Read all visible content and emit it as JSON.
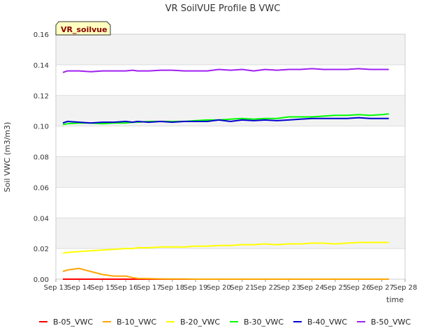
{
  "chart_data": {
    "type": "line",
    "title": "VR SoilVUE Profile B VWC",
    "xlabel": "time",
    "ylabel": "Soil VWC (m3/m3)",
    "badge": "VR_soilvue",
    "xlim": [
      13,
      28
    ],
    "ylim": [
      0.0,
      0.16
    ],
    "yticks": [
      0.0,
      0.02,
      0.04,
      0.06,
      0.08,
      0.1,
      0.12,
      0.14,
      0.16
    ],
    "ytick_labels": [
      "0.00",
      "0.02",
      "0.04",
      "0.06",
      "0.08",
      "0.10",
      "0.12",
      "0.14",
      "0.16"
    ],
    "xticks": [
      13,
      14,
      15,
      16,
      17,
      18,
      19,
      20,
      21,
      22,
      23,
      24,
      25,
      26,
      27,
      28
    ],
    "xtick_labels": [
      "Sep 13",
      "Sep 14",
      "Sep 15",
      "Sep 16",
      "Sep 17",
      "Sep 18",
      "Sep 19",
      "Sep 20",
      "Sep 21",
      "Sep 22",
      "Sep 23",
      "Sep 24",
      "Sep 25",
      "Sep 26",
      "Sep 27",
      "Sep 28"
    ],
    "grid": true,
    "legend_position": "bottom",
    "x": [
      13.3,
      13.5,
      14.0,
      14.5,
      15.0,
      15.5,
      16.0,
      16.3,
      16.5,
      17.0,
      17.5,
      18.0,
      18.5,
      19.0,
      19.5,
      20.0,
      20.5,
      21.0,
      21.5,
      22.0,
      22.5,
      23.0,
      23.5,
      24.0,
      24.5,
      25.0,
      25.5,
      26.0,
      26.5,
      27.0,
      27.3
    ],
    "series": [
      {
        "name": "B-05_VWC",
        "color": "#ff0000",
        "values": [
          0.0,
          0.0,
          0.0,
          0.0,
          0.0,
          0.0,
          0.0,
          0.0,
          0.0,
          0.0,
          0.0,
          0.0,
          0.0,
          0.0,
          0.0,
          0.0,
          0.0,
          0.0,
          0.0,
          0.0,
          0.0,
          0.0,
          0.0,
          0.0,
          0.0,
          0.0,
          0.0,
          0.0,
          0.0,
          0.0,
          0.0
        ]
      },
      {
        "name": "B-10_VWC",
        "color": "#ffa500",
        "values": [
          0.005,
          0.006,
          0.007,
          0.005,
          0.003,
          0.002,
          0.002,
          0.001,
          0.0005,
          0.0003,
          0.0002,
          0.0001,
          0.0001,
          0.0,
          0.0,
          0.0,
          0.0,
          0.0,
          0.0,
          0.0,
          0.0,
          0.0,
          0.0,
          0.0,
          0.0,
          0.0,
          0.0,
          0.0,
          0.0,
          0.0,
          0.0
        ]
      },
      {
        "name": "B-20_VWC",
        "color": "#ffff00",
        "values": [
          0.017,
          0.0175,
          0.018,
          0.0185,
          0.019,
          0.0195,
          0.02,
          0.02,
          0.0205,
          0.0205,
          0.021,
          0.021,
          0.021,
          0.0215,
          0.0215,
          0.022,
          0.022,
          0.0225,
          0.0225,
          0.023,
          0.0225,
          0.023,
          0.023,
          0.0235,
          0.0235,
          0.023,
          0.0235,
          0.024,
          0.024,
          0.024,
          0.024
        ]
      },
      {
        "name": "B-30_VWC",
        "color": "#00ff00",
        "values": [
          0.101,
          0.1015,
          0.102,
          0.102,
          0.1015,
          0.102,
          0.102,
          0.1025,
          0.1025,
          0.103,
          0.103,
          0.103,
          0.103,
          0.1035,
          0.104,
          0.104,
          0.1045,
          0.105,
          0.1045,
          0.105,
          0.105,
          0.106,
          0.106,
          0.106,
          0.1065,
          0.107,
          0.107,
          0.1075,
          0.107,
          0.1075,
          0.108
        ]
      },
      {
        "name": "B-40_VWC",
        "color": "#0000cd",
        "values": [
          0.102,
          0.103,
          0.1025,
          0.102,
          0.1025,
          0.1025,
          0.103,
          0.1025,
          0.103,
          0.1025,
          0.103,
          0.1025,
          0.103,
          0.103,
          0.103,
          0.104,
          0.103,
          0.104,
          0.1035,
          0.104,
          0.1035,
          0.104,
          0.1045,
          0.105,
          0.105,
          0.105,
          0.105,
          0.1055,
          0.105,
          0.105,
          0.105
        ]
      },
      {
        "name": "B-50_VWC",
        "color": "#a020f0",
        "values": [
          0.135,
          0.136,
          0.136,
          0.1355,
          0.136,
          0.136,
          0.136,
          0.1365,
          0.136,
          0.136,
          0.1365,
          0.1365,
          0.136,
          0.136,
          0.136,
          0.137,
          0.1365,
          0.137,
          0.136,
          0.137,
          0.1365,
          0.137,
          0.137,
          0.1375,
          0.137,
          0.137,
          0.137,
          0.1375,
          0.137,
          0.137,
          0.137
        ]
      }
    ]
  }
}
